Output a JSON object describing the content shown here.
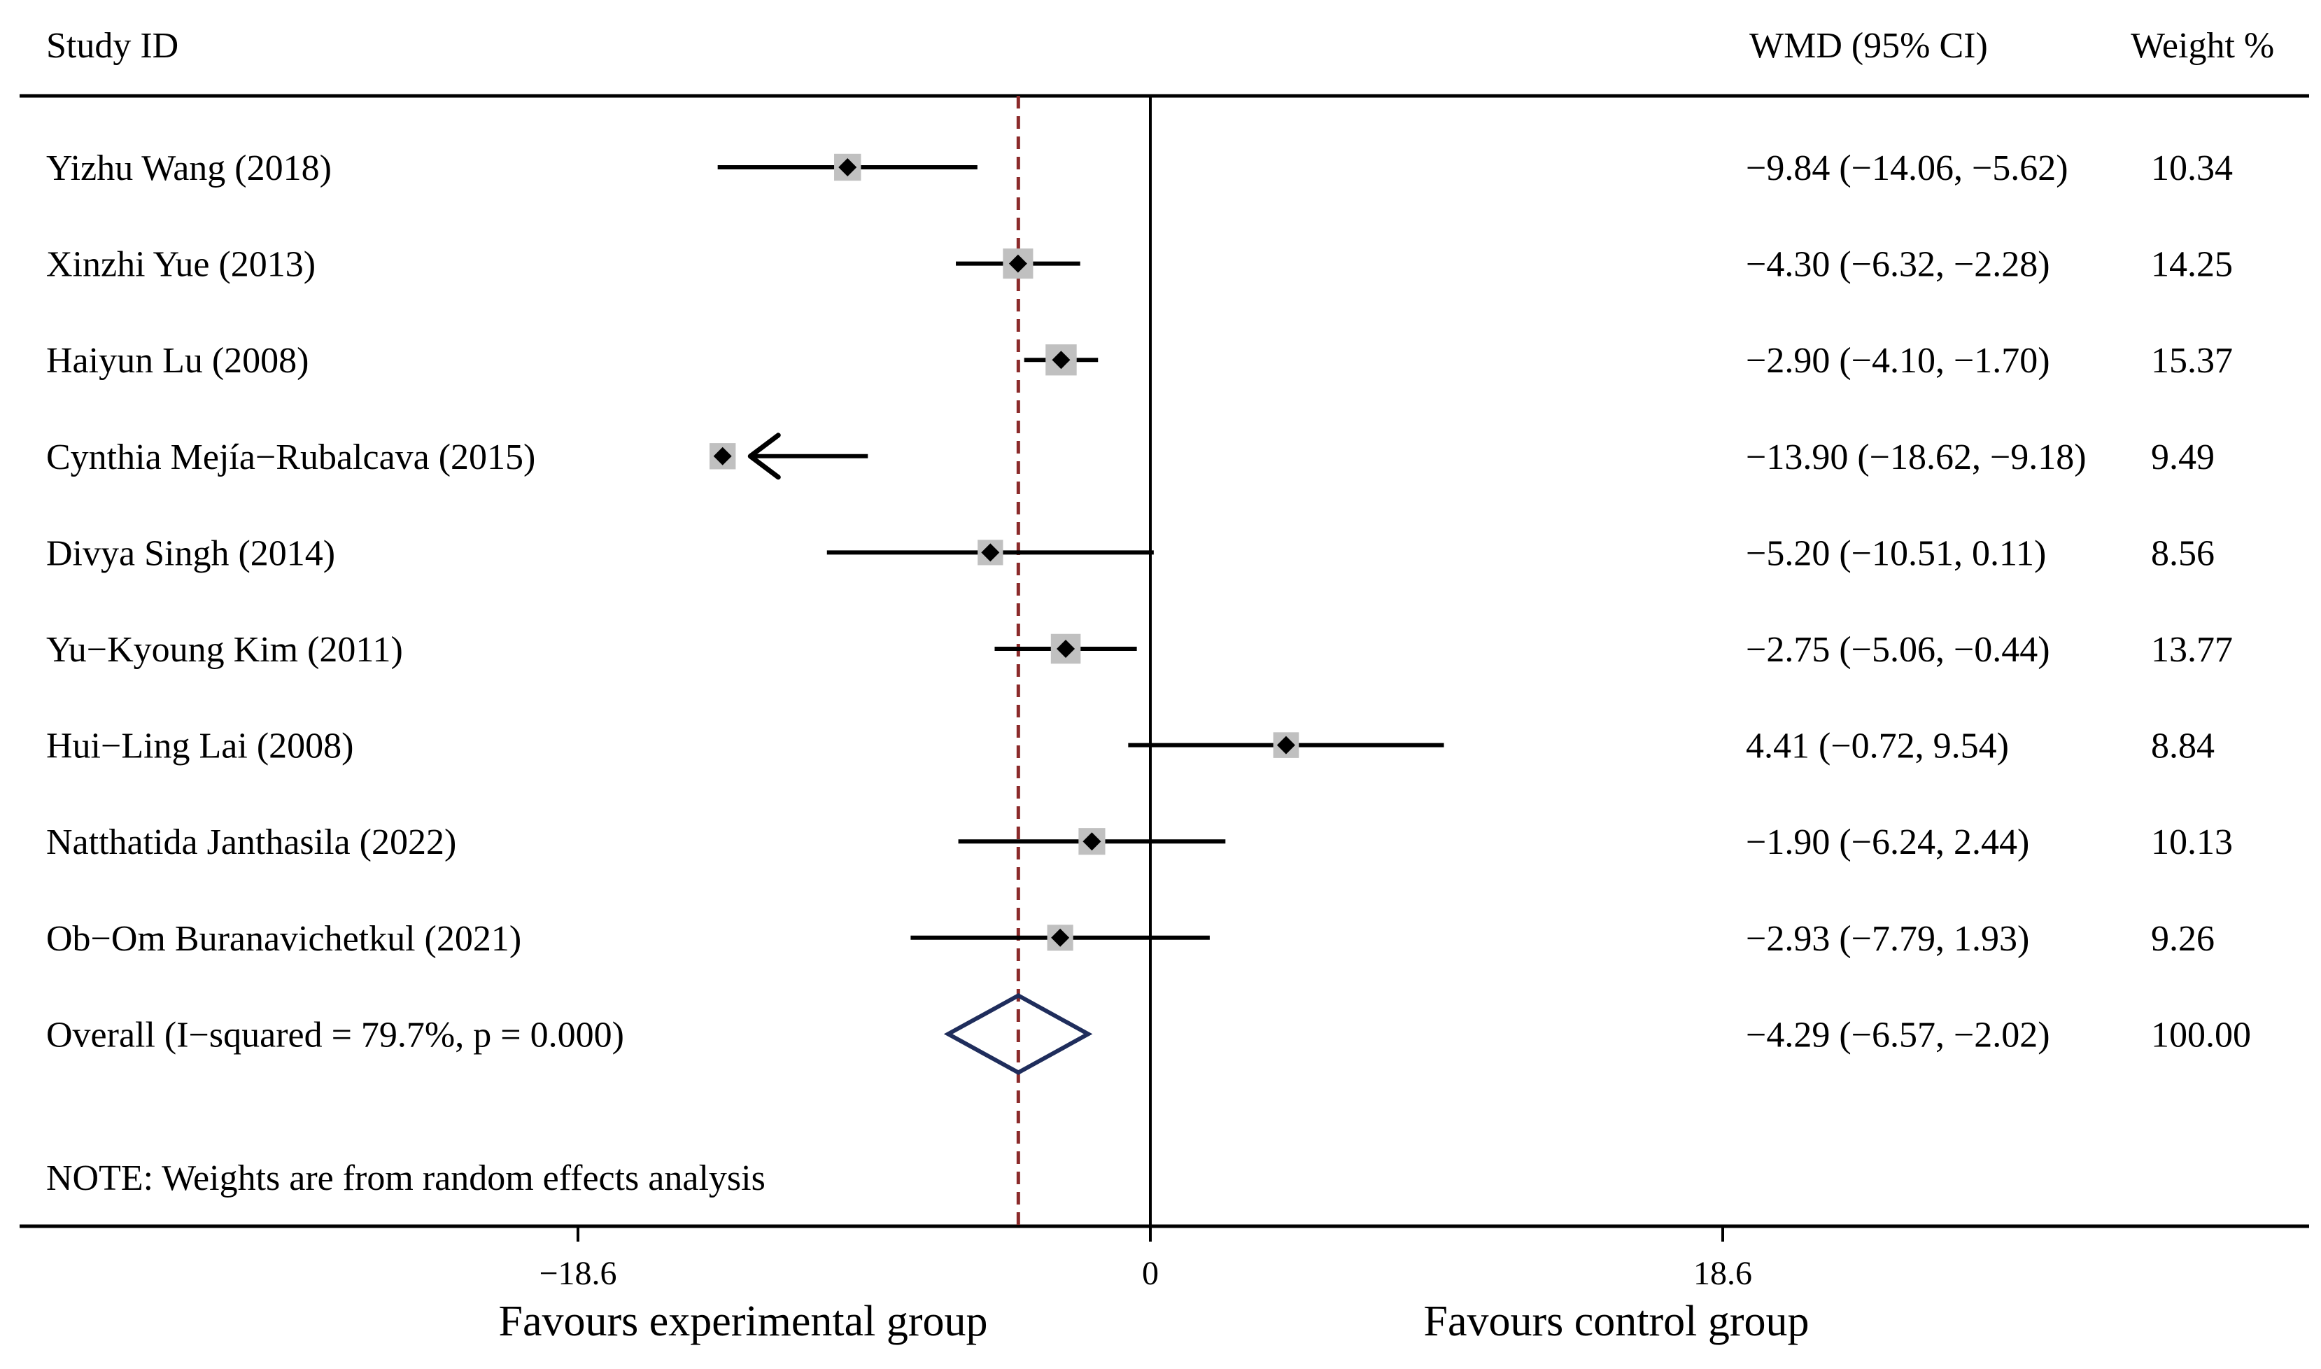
{
  "chart_data": {
    "type": "forest",
    "columns": {
      "study": "Study  ID",
      "effect": "WMD (95% CI)",
      "weight": "Weight %"
    },
    "studies": [
      {
        "label": "Yizhu Wang (2018)",
        "est": -9.84,
        "lo": -14.06,
        "hi": -5.62,
        "ci_text": "−9.84 (−14.06, −5.62)",
        "weight": "10.34",
        "weight_value": 10.34
      },
      {
        "label": "Xinzhi Yue (2013)",
        "est": -4.3,
        "lo": -6.32,
        "hi": -2.28,
        "ci_text": "−4.30 (−6.32, −2.28)",
        "weight": "14.25",
        "weight_value": 14.25
      },
      {
        "label": "Haiyun Lu (2008)",
        "est": -2.9,
        "lo": -4.1,
        "hi": -1.7,
        "ci_text": "−2.90 (−4.10, −1.70)",
        "weight": "15.37",
        "weight_value": 15.37
      },
      {
        "label": "Cynthia Mejía−Rubalcava (2015)",
        "est": -13.9,
        "lo": -18.62,
        "hi": -9.18,
        "ci_text": "−13.90 (−18.62, −9.18)",
        "weight": "9.49",
        "weight_value": 9.49,
        "truncated_left": true
      },
      {
        "label": "Divya Singh (2014)",
        "est": -5.2,
        "lo": -10.51,
        "hi": 0.11,
        "ci_text": "−5.20 (−10.51, 0.11)",
        "weight": "8.56",
        "weight_value": 8.56
      },
      {
        "label": "Yu−Kyoung Kim (2011)",
        "est": -2.75,
        "lo": -5.06,
        "hi": -0.44,
        "ci_text": "−2.75 (−5.06, −0.44)",
        "weight": "13.77",
        "weight_value": 13.77
      },
      {
        "label": "Hui−Ling Lai (2008)",
        "est": 4.41,
        "lo": -0.72,
        "hi": 9.54,
        "ci_text": "4.41 (−0.72, 9.54)",
        "weight": "8.84",
        "weight_value": 8.84
      },
      {
        "label": "Natthatida Janthasila (2022)",
        "est": -1.9,
        "lo": -6.24,
        "hi": 2.44,
        "ci_text": "−1.90 (−6.24, 2.44)",
        "weight": "10.13",
        "weight_value": 10.13
      },
      {
        "label": "Ob−Om Buranavichetkul (2021)",
        "est": -2.93,
        "lo": -7.79,
        "hi": 1.93,
        "ci_text": "−2.93 (−7.79, 1.93)",
        "weight": "9.26",
        "weight_value": 9.26
      }
    ],
    "overall": {
      "label": "Overall  (I−squared = 79.7%, p = 0.000)",
      "est": -4.29,
      "lo": -6.57,
      "hi": -2.02,
      "ci_text": "−4.29 (−6.57, −2.02)",
      "weight": "100.00"
    },
    "note": "NOTE: Weights are from random effects analysis",
    "x_axis": {
      "ticks": [
        -18.6,
        0,
        18.6
      ],
      "tick_labels": [
        "−18.6",
        "0",
        "18.6"
      ],
      "range": [
        -37.2,
        37.2
      ]
    },
    "favours_left": "Favours experimental group",
    "favours_right": "Favours control group",
    "colors": {
      "marks": "#000000",
      "weight_box": "#c0c0c0",
      "diamond": "#1f2d5c",
      "overall_line": "#8b2a2a"
    }
  }
}
